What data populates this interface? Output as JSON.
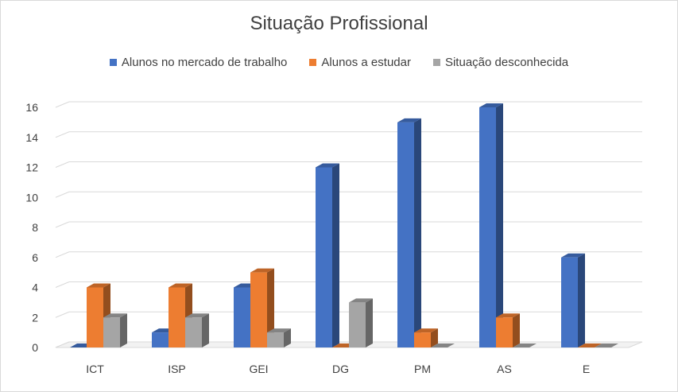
{
  "chart_data": {
    "type": "bar",
    "title": "Situação Profissional",
    "categories": [
      "ICT",
      "ISP",
      "GEI",
      "DG",
      "PM",
      "AS",
      "E"
    ],
    "series": [
      {
        "name": "Alunos no mercado de trabalho",
        "color": "#4472c4",
        "values": [
          0,
          1,
          4,
          12,
          15,
          16,
          6
        ]
      },
      {
        "name": "Alunos a estudar",
        "color": "#ed7d31",
        "values": [
          4,
          4,
          5,
          0,
          1,
          2,
          0
        ]
      },
      {
        "name": "Situação desconhecida",
        "color": "#a5a5a5",
        "values": [
          2,
          2,
          1,
          3,
          0,
          0,
          0
        ]
      }
    ],
    "yticks": [
      "0",
      "2",
      "4",
      "6",
      "8",
      "10",
      "12",
      "14",
      "16"
    ],
    "ylim": [
      0,
      16
    ],
    "grid": true,
    "legend": "top"
  }
}
